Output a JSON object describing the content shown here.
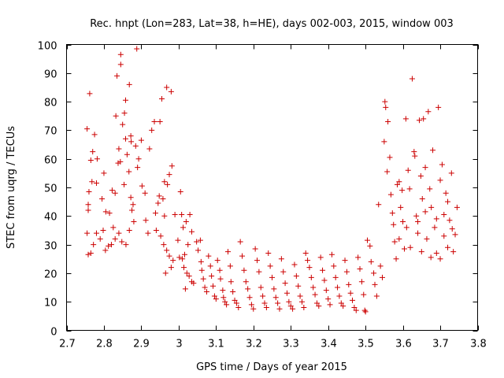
{
  "chart_data": {
    "type": "scatter",
    "title": "Rec. hnpt (Lon=283, Lat=38, h=HE), days 002-003, 2015, window 003",
    "xlabel": "GPS time / Days of year 2015",
    "ylabel": "STEC from uqrg / TECUs",
    "xlim": [
      2.7,
      3.8
    ],
    "ylim": [
      0,
      100
    ],
    "xticks": [
      2.7,
      2.8,
      2.9,
      3.0,
      3.1,
      3.2,
      3.3,
      3.4,
      3.5,
      3.6,
      3.7,
      3.8
    ],
    "xtick_labels": [
      "2.7",
      "2.8",
      "2.9",
      "3",
      "3.1",
      "3.2",
      "3.3",
      "3.4",
      "3.5",
      "3.6",
      "3.7",
      "3.8"
    ],
    "yticks": [
      0,
      10,
      20,
      30,
      40,
      50,
      60,
      70,
      80,
      90,
      100
    ],
    "ytick_labels": [
      "0",
      "10",
      "20",
      "30",
      "40",
      "50",
      "60",
      "70",
      "80",
      "90",
      "100"
    ],
    "grid": false,
    "marker": "+",
    "color": "#cc0000",
    "series": [
      {
        "name": "STEC",
        "points": [
          [
            2.755,
            70.5
          ],
          [
            2.762,
            82.8
          ],
          [
            2.775,
            68.5
          ],
          [
            2.782,
            60
          ],
          [
            2.765,
            59.5
          ],
          [
            2.768,
            52
          ],
          [
            2.76,
            48.5
          ],
          [
            2.758,
            44
          ],
          [
            2.758,
            42
          ],
          [
            2.78,
            51.5
          ],
          [
            2.795,
            46
          ],
          [
            2.8,
            55
          ],
          [
            2.805,
            41.5
          ],
          [
            2.798,
            35
          ],
          [
            2.79,
            32
          ],
          [
            2.78,
            34
          ],
          [
            2.772,
            30
          ],
          [
            2.765,
            27
          ],
          [
            2.758,
            26.5
          ],
          [
            2.755,
            34
          ],
          [
            2.77,
            62.5
          ],
          [
            2.815,
            41
          ],
          [
            2.822,
            49
          ],
          [
            2.83,
            48
          ],
          [
            2.84,
            63.5
          ],
          [
            2.825,
            36
          ],
          [
            2.838,
            58.5
          ],
          [
            2.844,
            59
          ],
          [
            2.85,
            72
          ],
          [
            2.854,
            51
          ],
          [
            2.858,
            67
          ],
          [
            2.862,
            61.5
          ],
          [
            2.867,
            55.5
          ],
          [
            2.872,
            46.5
          ],
          [
            2.875,
            42
          ],
          [
            2.878,
            44
          ],
          [
            2.88,
            38
          ],
          [
            2.868,
            35
          ],
          [
            2.859,
            30
          ],
          [
            2.848,
            31
          ],
          [
            2.84,
            34
          ],
          [
            2.83,
            32
          ],
          [
            2.82,
            30
          ],
          [
            2.812,
            29.5
          ],
          [
            2.804,
            28
          ],
          [
            2.845,
            96.5
          ],
          [
            2.845,
            93
          ],
          [
            2.835,
            89
          ],
          [
            2.832,
            75
          ],
          [
            2.855,
            76
          ],
          [
            2.858,
            80.5
          ],
          [
            2.868,
            86
          ],
          [
            2.888,
            98.5
          ],
          [
            2.872,
            68
          ],
          [
            2.873,
            66
          ],
          [
            2.885,
            64.5
          ],
          [
            2.89,
            57
          ],
          [
            2.893,
            60
          ],
          [
            2.9,
            66.5
          ],
          [
            2.902,
            50.5
          ],
          [
            2.91,
            48
          ],
          [
            2.912,
            38.5
          ],
          [
            2.918,
            34
          ],
          [
            2.922,
            63.5
          ],
          [
            2.928,
            70
          ],
          [
            2.935,
            73
          ],
          [
            2.95,
            73
          ],
          [
            2.955,
            81
          ],
          [
            2.962,
            52
          ],
          [
            2.968,
            85
          ],
          [
            2.98,
            83.5
          ],
          [
            2.97,
            51
          ],
          [
            2.975,
            54.5
          ],
          [
            2.982,
            57.5
          ],
          [
            2.948,
            47
          ],
          [
            2.958,
            46
          ],
          [
            2.962,
            40
          ],
          [
            2.945,
            44.5
          ],
          [
            2.938,
            41
          ],
          [
            2.94,
            35
          ],
          [
            2.952,
            33
          ],
          [
            2.96,
            30
          ],
          [
            2.968,
            28
          ],
          [
            2.975,
            26
          ],
          [
            2.98,
            22
          ],
          [
            2.985,
            24.5
          ],
          [
            2.965,
            20
          ],
          [
            2.99,
            40.5
          ],
          [
            2.998,
            31.5
          ],
          [
            3.005,
            48.5
          ],
          [
            3.008,
            40.5
          ],
          [
            3.012,
            36
          ],
          [
            3.02,
            38
          ],
          [
            3.025,
            30
          ],
          [
            3.03,
            40.5
          ],
          [
            3.035,
            34.5
          ],
          [
            3.002,
            25.5
          ],
          [
            3.01,
            25
          ],
          [
            3.016,
            26.5
          ],
          [
            3.014,
            22
          ],
          [
            3.018,
            14.5
          ],
          [
            3.022,
            20
          ],
          [
            3.028,
            19
          ],
          [
            3.035,
            17
          ],
          [
            3.04,
            16.5
          ],
          [
            3.048,
            31
          ],
          [
            3.052,
            28
          ],
          [
            3.058,
            31.5
          ],
          [
            3.06,
            24
          ],
          [
            3.062,
            21
          ],
          [
            3.066,
            18
          ],
          [
            3.07,
            15
          ],
          [
            3.075,
            13.5
          ],
          [
            3.08,
            26
          ],
          [
            3.085,
            22.5
          ],
          [
            3.088,
            19
          ],
          [
            3.092,
            15.5
          ],
          [
            3.096,
            12
          ],
          [
            3.1,
            11
          ],
          [
            3.104,
            24.5
          ],
          [
            3.11,
            21
          ],
          [
            3.112,
            18
          ],
          [
            3.118,
            14
          ],
          [
            3.12,
            11.5
          ],
          [
            3.124,
            10
          ],
          [
            3.128,
            9
          ],
          [
            3.132,
            27.5
          ],
          [
            3.138,
            22.5
          ],
          [
            3.14,
            17
          ],
          [
            3.145,
            13.5
          ],
          [
            3.15,
            10.5
          ],
          [
            3.155,
            9.5
          ],
          [
            3.16,
            8
          ],
          [
            3.165,
            31
          ],
          [
            3.17,
            26
          ],
          [
            3.175,
            21
          ],
          [
            3.18,
            17
          ],
          [
            3.185,
            14.5
          ],
          [
            3.19,
            11.5
          ],
          [
            3.195,
            9
          ],
          [
            3.2,
            7.5
          ],
          [
            3.205,
            28.5
          ],
          [
            3.21,
            24.5
          ],
          [
            3.215,
            20.5
          ],
          [
            3.22,
            15
          ],
          [
            3.225,
            12
          ],
          [
            3.23,
            9.5
          ],
          [
            3.235,
            8
          ],
          [
            3.24,
            27
          ],
          [
            3.245,
            22.5
          ],
          [
            3.25,
            18.5
          ],
          [
            3.255,
            14.5
          ],
          [
            3.26,
            11.5
          ],
          [
            3.265,
            9.5
          ],
          [
            3.27,
            7.5
          ],
          [
            3.275,
            25
          ],
          [
            3.28,
            20.5
          ],
          [
            3.285,
            16.5
          ],
          [
            3.29,
            13
          ],
          [
            3.295,
            10
          ],
          [
            3.3,
            8.5
          ],
          [
            3.305,
            7.5
          ],
          [
            3.31,
            23
          ],
          [
            3.315,
            19
          ],
          [
            3.32,
            15.5
          ],
          [
            3.325,
            12
          ],
          [
            3.33,
            10
          ],
          [
            3.335,
            8
          ],
          [
            3.34,
            27
          ],
          [
            3.345,
            24.5
          ],
          [
            3.35,
            22
          ],
          [
            3.355,
            18.5
          ],
          [
            3.36,
            15
          ],
          [
            3.365,
            12.5
          ],
          [
            3.37,
            9.5
          ],
          [
            3.375,
            8.5
          ],
          [
            3.38,
            25.5
          ],
          [
            3.385,
            21
          ],
          [
            3.39,
            17.5
          ],
          [
            3.395,
            14
          ],
          [
            3.4,
            11
          ],
          [
            3.405,
            9
          ],
          [
            3.41,
            26.5
          ],
          [
            3.415,
            22.5
          ],
          [
            3.42,
            18.5
          ],
          [
            3.425,
            15
          ],
          [
            3.43,
            12
          ],
          [
            3.435,
            9.5
          ],
          [
            3.44,
            8.5
          ],
          [
            3.445,
            24.5
          ],
          [
            3.45,
            20.5
          ],
          [
            3.455,
            16
          ],
          [
            3.46,
            13
          ],
          [
            3.465,
            10.5
          ],
          [
            3.47,
            8
          ],
          [
            3.475,
            7
          ],
          [
            3.48,
            25.5
          ],
          [
            3.485,
            21.5
          ],
          [
            3.49,
            17
          ],
          [
            3.495,
            12.5
          ],
          [
            3.498,
            7
          ],
          [
            3.5,
            6.5
          ],
          [
            3.505,
            31.5
          ],
          [
            3.512,
            29.5
          ],
          [
            3.515,
            24
          ],
          [
            3.522,
            20
          ],
          [
            3.525,
            16
          ],
          [
            3.53,
            12
          ],
          [
            3.535,
            44
          ],
          [
            3.54,
            22.5
          ],
          [
            3.545,
            18.5
          ],
          [
            3.552,
            80
          ],
          [
            3.554,
            78
          ],
          [
            3.55,
            66
          ],
          [
            3.558,
            55.5
          ],
          [
            3.56,
            73
          ],
          [
            3.565,
            60.5
          ],
          [
            3.568,
            47.5
          ],
          [
            3.572,
            41
          ],
          [
            3.575,
            37
          ],
          [
            3.578,
            31
          ],
          [
            3.582,
            25
          ],
          [
            3.585,
            51
          ],
          [
            3.59,
            52
          ],
          [
            3.594,
            43
          ],
          [
            3.598,
            49
          ],
          [
            3.6,
            38
          ],
          [
            3.604,
            28.5
          ],
          [
            3.608,
            74
          ],
          [
            3.614,
            56
          ],
          [
            3.618,
            49.5
          ],
          [
            3.625,
            88
          ],
          [
            3.63,
            62.5
          ],
          [
            3.632,
            61
          ],
          [
            3.636,
            40
          ],
          [
            3.64,
            34
          ],
          [
            3.644,
            73.5
          ],
          [
            3.648,
            54
          ],
          [
            3.652,
            46
          ],
          [
            3.655,
            74
          ],
          [
            3.66,
            57
          ],
          [
            3.664,
            32
          ],
          [
            3.668,
            76.5
          ],
          [
            3.672,
            49.5
          ],
          [
            3.676,
            43
          ],
          [
            3.68,
            63
          ],
          [
            3.685,
            36
          ],
          [
            3.69,
            27
          ],
          [
            3.695,
            78
          ],
          [
            3.7,
            52.5
          ],
          [
            3.705,
            58
          ],
          [
            3.71,
            33
          ],
          [
            3.715,
            48
          ],
          [
            3.72,
            45
          ],
          [
            3.725,
            38.5
          ],
          [
            3.73,
            55
          ],
          [
            3.732,
            35.5
          ],
          [
            3.735,
            27.5
          ],
          [
            3.74,
            33.5
          ],
          [
            3.745,
            43
          ],
          [
            3.59,
            32
          ],
          [
            3.62,
            29
          ],
          [
            3.65,
            27.5
          ],
          [
            3.675,
            25.5
          ],
          [
            3.7,
            25
          ],
          [
            3.72,
            29
          ],
          [
            3.61,
            36
          ],
          [
            3.64,
            38
          ],
          [
            3.66,
            41.5
          ],
          [
            3.69,
            39
          ],
          [
            3.71,
            40.5
          ]
        ]
      }
    ]
  }
}
